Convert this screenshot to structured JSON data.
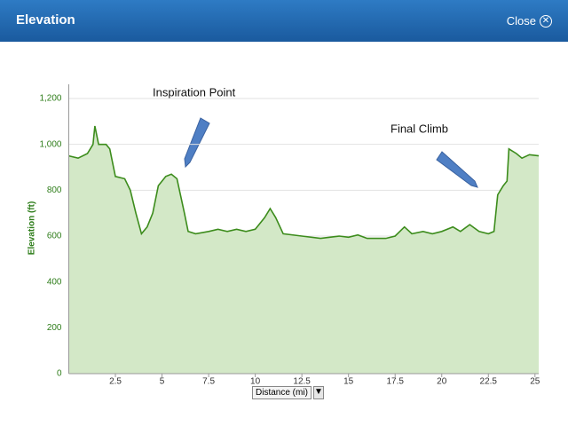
{
  "header": {
    "title": "Elevation",
    "close": "Close"
  },
  "chart_data": {
    "type": "area",
    "x_label": "Distance (mi)",
    "y_label": "Elevation (ft)",
    "annotations": [
      {
        "text": "Inspiration Point"
      },
      {
        "text": "Final Climb"
      }
    ],
    "x": [
      0,
      0.5,
      1.0,
      1.3,
      1.4,
      1.6,
      2.0,
      2.2,
      2.5,
      3.0,
      3.3,
      3.6,
      3.9,
      4.2,
      4.5,
      4.8,
      5.2,
      5.5,
      5.8,
      6.2,
      6.4,
      6.8,
      7.5,
      8.0,
      8.5,
      9.0,
      9.5,
      10.0,
      10.5,
      10.8,
      11.1,
      11.5,
      12.5,
      13.5,
      14.5,
      15.0,
      15.5,
      16.0,
      17.0,
      17.5,
      18.0,
      18.4,
      19.0,
      19.5,
      20.0,
      20.6,
      21.0,
      21.5,
      22.0,
      22.5,
      22.8,
      23.0,
      23.3,
      23.5,
      23.6,
      24.0,
      24.3,
      24.7,
      25.2
    ],
    "values": [
      950,
      940,
      960,
      1000,
      1080,
      1000,
      1000,
      980,
      860,
      850,
      800,
      700,
      610,
      640,
      700,
      820,
      860,
      870,
      850,
      700,
      620,
      610,
      620,
      630,
      620,
      630,
      620,
      630,
      680,
      720,
      680,
      610,
      600,
      590,
      600,
      595,
      605,
      590,
      590,
      600,
      640,
      610,
      620,
      610,
      620,
      640,
      620,
      650,
      620,
      610,
      620,
      780,
      820,
      840,
      980,
      960,
      940,
      955,
      950
    ],
    "color": "#3c8c1c",
    "fill": "#d3e8c7",
    "xlim": [
      0,
      25.2
    ],
    "ylim": [
      0,
      1200
    ],
    "xticks": [
      2.5,
      5,
      7.5,
      10,
      12.5,
      15,
      17.5,
      20,
      22.5,
      25
    ],
    "yticks": [
      0,
      200,
      400,
      600,
      800,
      {
        "value": 1000,
        "label": "1,000"
      },
      {
        "value": 1200,
        "label": "1,200"
      }
    ],
    "grid": true
  }
}
